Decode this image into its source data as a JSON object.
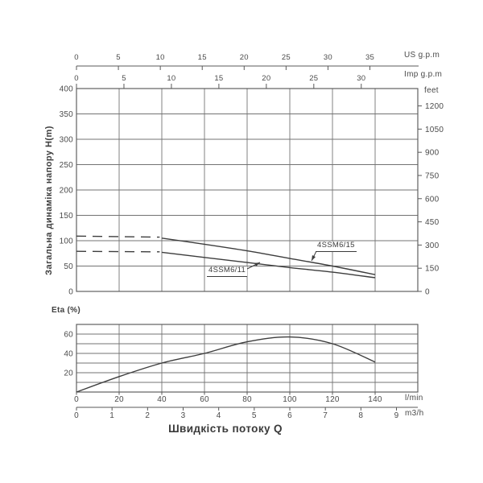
{
  "colors": {
    "grid": "#737373",
    "frame": "#595959",
    "curve": "#3d3d3d",
    "text": "#4a4a4a"
  },
  "x_title": "Швидкість потоку Q",
  "bottom_axes": {
    "lmin": {
      "label": "l/min",
      "ticks": [
        0,
        20,
        40,
        60,
        80,
        100,
        120,
        140
      ]
    },
    "m3h": {
      "label": "m3/h",
      "ticks": [
        0,
        1,
        2,
        3,
        4,
        5,
        6,
        7,
        8,
        9
      ],
      "lmin_per_unit": 16.667
    }
  },
  "chart_data": [
    {
      "type": "line",
      "name": "pump-head-curves",
      "ylabel": "Загальна динаміка напору H(m)",
      "xlabel": "Швидкість потоку Q",
      "xlim": [
        0,
        160
      ],
      "ylim": [
        0,
        400
      ],
      "grid": true,
      "y_axis": {
        "unit": "H(m)",
        "ticks": [
          0,
          50,
          100,
          150,
          200,
          250,
          300,
          350,
          400
        ]
      },
      "right_axis": {
        "label": "feet",
        "ticks": [
          0,
          150,
          300,
          450,
          600,
          750,
          900,
          1050,
          1200
        ],
        "m_per_unit": 0.3048
      },
      "top_axes": {
        "us": {
          "label": "US g.p.m",
          "ticks": [
            0,
            5,
            10,
            15,
            20,
            25,
            30,
            35
          ],
          "lmin_per_unit": 3.93
        },
        "imp": {
          "label": "Imp g.p.m",
          "ticks": [
            0,
            5,
            10,
            15,
            20,
            25,
            30
          ],
          "lmin_per_unit": 4.45
        }
      },
      "series": [
        {
          "name": "4SSM6/15",
          "style": "dashed",
          "points": [
            [
              0,
              109
            ],
            [
              39,
              107
            ]
          ]
        },
        {
          "name": "4SSM6/15",
          "style": "solid",
          "points": [
            [
              40,
              105
            ],
            [
              60,
              93
            ],
            [
              80,
              80
            ],
            [
              100,
              65
            ],
            [
              120,
              50
            ],
            [
              140,
              33
            ]
          ]
        },
        {
          "name": "4SSM6/11",
          "style": "dashed",
          "points": [
            [
              0,
              79
            ],
            [
              39,
              78
            ]
          ]
        },
        {
          "name": "4SSM6/11",
          "style": "solid",
          "points": [
            [
              40,
              77
            ],
            [
              60,
              67
            ],
            [
              80,
              57
            ],
            [
              100,
              47
            ],
            [
              120,
              38
            ],
            [
              140,
              27
            ]
          ]
        }
      ],
      "annotations": [
        {
          "text": "4SSM6/15",
          "leader": {
            "from": [
              393,
              312
            ],
            "to": [
              387,
              324
            ]
          }
        },
        {
          "text": "4SSM6/11",
          "leader": {
            "from": [
              307,
              334
            ],
            "to": [
              323,
              326
            ]
          }
        }
      ]
    },
    {
      "type": "line",
      "name": "pump-efficiency-curve",
      "title": "Eta (%)",
      "xlim": [
        0,
        160
      ],
      "ylim": [
        0,
        70
      ],
      "grid": true,
      "y_ticks_labeled": [
        20,
        40,
        60
      ],
      "y_grid": [
        10,
        20,
        30,
        40,
        50,
        60
      ],
      "curve": [
        [
          0,
          0
        ],
        [
          20,
          16
        ],
        [
          40,
          30
        ],
        [
          60,
          40
        ],
        [
          80,
          52
        ],
        [
          100,
          57
        ],
        [
          120,
          50
        ],
        [
          140,
          31
        ]
      ]
    }
  ]
}
